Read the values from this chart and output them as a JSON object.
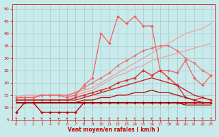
{
  "background_color": "#c8eaea",
  "grid_color": "#9fbebe",
  "xlabel": "Vent moyen/en rafales ( km/h )",
  "xlim": [
    -0.5,
    23.5
  ],
  "ylim": [
    5,
    52
  ],
  "yticks": [
    5,
    10,
    15,
    20,
    25,
    30,
    35,
    40,
    45,
    50
  ],
  "xticks": [
    0,
    1,
    2,
    3,
    4,
    5,
    6,
    7,
    8,
    9,
    10,
    11,
    12,
    13,
    14,
    15,
    16,
    17,
    18,
    19,
    20,
    21,
    22,
    23
  ],
  "series": [
    {
      "label": "line_diagonal_upper",
      "x": [
        0,
        1,
        2,
        3,
        4,
        5,
        6,
        7,
        8,
        9,
        10,
        11,
        12,
        13,
        14,
        15,
        16,
        17,
        18,
        19,
        20,
        21,
        22,
        23
      ],
      "y": [
        14,
        15,
        15,
        15,
        15,
        15,
        15,
        16,
        17,
        18,
        20,
        22,
        24,
        26,
        28,
        30,
        32,
        34,
        36,
        38,
        40,
        41,
        42,
        44
      ],
      "color": "#f0a0a0",
      "lw": 0.9,
      "marker": null,
      "ms": 0,
      "ls": "-"
    },
    {
      "label": "line_diagonal_mid",
      "x": [
        0,
        1,
        2,
        3,
        4,
        5,
        6,
        7,
        8,
        9,
        10,
        11,
        12,
        13,
        14,
        15,
        16,
        17,
        18,
        19,
        20,
        21,
        22,
        23
      ],
      "y": [
        14,
        14,
        14,
        15,
        15,
        15,
        15,
        15,
        16,
        17,
        19,
        21,
        23,
        24,
        26,
        27,
        29,
        30,
        31,
        32,
        33,
        34,
        35,
        36
      ],
      "color": "#f0a0a0",
      "lw": 0.9,
      "marker": null,
      "ms": 0,
      "ls": "-"
    },
    {
      "label": "line_pink_dotted_up",
      "x": [
        0,
        1,
        2,
        3,
        4,
        5,
        6,
        7,
        8,
        9,
        10,
        11,
        12,
        13,
        14,
        15,
        16,
        17,
        18,
        19,
        20,
        21,
        22,
        23
      ],
      "y": [
        14,
        14,
        14,
        15,
        15,
        15,
        15,
        16,
        18,
        20,
        22,
        24,
        27,
        29,
        31,
        33,
        34,
        35,
        35,
        33,
        30,
        28,
        25,
        23
      ],
      "color": "#e87878",
      "lw": 0.9,
      "marker": "D",
      "ms": 2.0,
      "ls": "-"
    },
    {
      "label": "line_pink_jagged",
      "x": [
        0,
        1,
        2,
        3,
        4,
        5,
        6,
        7,
        8,
        9,
        10,
        11,
        12,
        13,
        14,
        15,
        16,
        17,
        18,
        19,
        20,
        21,
        22,
        23
      ],
      "y": [
        14,
        14,
        14,
        15,
        15,
        15,
        14,
        15,
        19,
        22,
        40,
        36,
        47,
        44,
        47,
        43,
        43,
        25,
        25,
        24,
        29,
        22,
        19,
        23
      ],
      "color": "#f06060",
      "lw": 0.9,
      "marker": "D",
      "ms": 2.0,
      "ls": "-"
    },
    {
      "label": "line_red_upper_jagged",
      "x": [
        0,
        1,
        2,
        3,
        4,
        5,
        6,
        7,
        8,
        9,
        10,
        11,
        12,
        13,
        14,
        15,
        16,
        17,
        18,
        19,
        20,
        21,
        22,
        23
      ],
      "y": [
        13,
        13,
        13,
        13,
        13,
        13,
        13,
        14,
        15,
        16,
        17,
        18,
        20,
        21,
        22,
        25,
        23,
        25,
        22,
        19,
        14,
        13,
        14,
        13
      ],
      "color": "#dd3333",
      "lw": 1.0,
      "marker": "D",
      "ms": 2.0,
      "ls": "-"
    },
    {
      "label": "line_red_flat_upper",
      "x": [
        0,
        1,
        2,
        3,
        4,
        5,
        6,
        7,
        8,
        9,
        10,
        11,
        12,
        13,
        14,
        15,
        16,
        17,
        18,
        19,
        20,
        21,
        22,
        23
      ],
      "y": [
        13,
        13,
        13,
        13,
        13,
        13,
        13,
        13,
        14,
        15,
        16,
        17,
        18,
        19,
        20,
        21,
        22,
        21,
        20,
        19,
        17,
        15,
        14,
        13
      ],
      "color": "#cc2222",
      "lw": 1.0,
      "marker": null,
      "ms": 0,
      "ls": "-"
    },
    {
      "label": "line_darkred_flat",
      "x": [
        0,
        1,
        2,
        3,
        4,
        5,
        6,
        7,
        8,
        9,
        10,
        11,
        12,
        13,
        14,
        15,
        16,
        17,
        18,
        19,
        20,
        21,
        22,
        23
      ],
      "y": [
        12,
        12,
        12,
        12,
        12,
        12,
        12,
        12,
        13,
        13,
        14,
        14,
        15,
        15,
        16,
        16,
        17,
        16,
        16,
        15,
        14,
        13,
        12,
        12
      ],
      "color": "#bb1111",
      "lw": 1.0,
      "marker": null,
      "ms": 0,
      "ls": "-"
    },
    {
      "label": "line_darkest_flat",
      "x": [
        0,
        1,
        2,
        3,
        4,
        5,
        6,
        7,
        8,
        9,
        10,
        11,
        12,
        13,
        14,
        15,
        16,
        17,
        18,
        19,
        20,
        21,
        22,
        23
      ],
      "y": [
        12,
        12,
        12,
        12,
        12,
        12,
        12,
        12,
        12,
        12,
        12,
        12,
        12,
        12,
        12,
        12,
        12,
        12,
        12,
        12,
        12,
        12,
        12,
        12
      ],
      "color": "#880000",
      "lw": 0.9,
      "marker": null,
      "ms": 0,
      "ls": "-"
    },
    {
      "label": "line_low_zigzag",
      "x": [
        0,
        1,
        2,
        3,
        4,
        5,
        6,
        7,
        8,
        9,
        10,
        11,
        12,
        13,
        14,
        15,
        16,
        17,
        18,
        19,
        20,
        21,
        22,
        23
      ],
      "y": [
        8,
        12,
        12,
        8,
        8,
        8,
        8,
        8,
        12,
        12,
        12,
        12,
        12,
        12,
        12,
        12,
        12,
        12,
        12,
        12,
        12,
        12,
        12,
        12
      ],
      "color": "#cc0000",
      "lw": 1.0,
      "marker": "D",
      "ms": 2.0,
      "ls": "-"
    },
    {
      "label": "line_low_flat_jagged",
      "x": [
        0,
        1,
        2,
        3,
        4,
        5,
        6,
        7,
        8,
        9,
        10,
        11,
        12,
        13,
        14,
        15,
        16,
        17,
        18,
        19,
        20,
        21,
        22,
        23
      ],
      "y": [
        12,
        12,
        12,
        12,
        12,
        12,
        12,
        12,
        12,
        12,
        12,
        12,
        12,
        12,
        12,
        12,
        12,
        12,
        12,
        12,
        11,
        11,
        11,
        11
      ],
      "color": "#990000",
      "lw": 0.9,
      "marker": null,
      "ms": 0,
      "ls": "-"
    }
  ],
  "arrow_color": "#cc2222",
  "tick_color": "#cc0000",
  "xlabel_color": "#cc0000",
  "spine_color": "#cc2222"
}
